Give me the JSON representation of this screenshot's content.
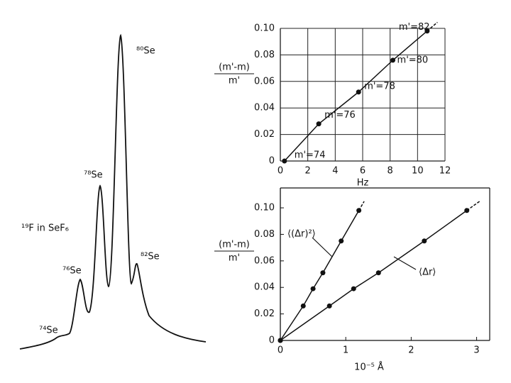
{
  "chart_data": [
    {
      "type": "spectrum",
      "annotation": "¹⁹F in SeF₆",
      "peak_labels": [
        "⁷⁴Se",
        "⁷⁶Se",
        "⁷⁸Se",
        "⁸⁰Se",
        "⁸²Se"
      ]
    },
    {
      "type": "scatter",
      "xlabel": "Hz",
      "ylabel": {
        "numerator": "(m'-m)",
        "denominator": "m'"
      },
      "xlim": [
        0,
        12
      ],
      "xticks": [
        0,
        2,
        4,
        6,
        8,
        10,
        12
      ],
      "ylim": [
        0,
        0.1
      ],
      "yticks": [
        0,
        0.02,
        0.04,
        0.06,
        {
          "value": 0.08,
          "label": "0.08"
        },
        {
          "value": 0.1,
          "label": "0.10"
        }
      ],
      "grid": true,
      "series": [
        {
          "color": "#111111",
          "x": [
            0.3,
            2.8,
            5.7,
            8.2,
            10.7
          ],
          "values": [
            0,
            0.028,
            0.052,
            0.076,
            0.098
          ],
          "point_labels": [
            "m'=74",
            "m'=76",
            "m'=78",
            "m'=80",
            "m'=82"
          ]
        }
      ]
    },
    {
      "type": "scatter",
      "xlabel": "10⁻⁵ Å",
      "ylabel": {
        "numerator": "(m'-m)",
        "denominator": "m'"
      },
      "xlim": [
        0,
        3.2
      ],
      "xticks": [
        0,
        1,
        2,
        3
      ],
      "ylim": [
        0,
        0.115
      ],
      "yticks": [
        0,
        0.02,
        0.04,
        0.06,
        0.08,
        {
          "value": 0.1,
          "label": "0.10"
        }
      ],
      "grid": false,
      "series": [
        {
          "name": "⟨(Δr)²⟩",
          "color": "#111111",
          "x": [
            0,
            0.35,
            0.5,
            0.65,
            0.93,
            1.2
          ],
          "values": [
            0,
            0.026,
            0.039,
            0.051,
            0.075,
            0.098
          ]
        },
        {
          "name": "⟨Δr⟩",
          "color": "#111111",
          "x": [
            0,
            0.75,
            1.12,
            1.5,
            2.2,
            2.85
          ],
          "values": [
            0,
            0.026,
            0.039,
            0.051,
            0.075,
            0.098
          ]
        }
      ]
    }
  ]
}
